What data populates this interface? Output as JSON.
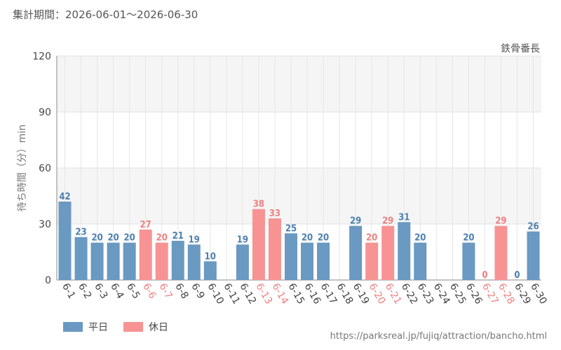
{
  "header": {
    "period": "集計期間：2026-06-01～2026-06-30"
  },
  "footer": {
    "source_url": "https://parksreal.jp/fujiq/attraction/bancho.html"
  },
  "colors": {
    "weekday": "#6a99c2",
    "holiday": "#f79393",
    "weekday_text": "#4d7fae",
    "holiday_text": "#f08080"
  },
  "chart_data": {
    "type": "bar",
    "title": "鉄骨番長",
    "ylabel": "待ち時間（分）min",
    "xlabel": "",
    "ylim": [
      0,
      120
    ],
    "yticks": [
      0,
      30,
      60,
      90,
      120
    ],
    "grid": true,
    "legend_position": "bottom-left",
    "legend": [
      {
        "key": "weekday",
        "label": "平日"
      },
      {
        "key": "holiday",
        "label": "休日"
      }
    ],
    "categories": [
      "6-1",
      "6-2",
      "6-3",
      "6-4",
      "6-5",
      "6-6",
      "6-7",
      "6-8",
      "6-9",
      "6-10",
      "6-11",
      "6-12",
      "6-13",
      "6-14",
      "6-15",
      "6-16",
      "6-17",
      "6-18",
      "6-19",
      "6-20",
      "6-21",
      "6-22",
      "6-23",
      "6-24",
      "6-25",
      "6-26",
      "6-27",
      "6-28",
      "6-29",
      "6-30"
    ],
    "values": [
      42,
      23,
      20,
      20,
      20,
      27,
      20,
      21,
      19,
      10,
      null,
      19,
      38,
      33,
      25,
      20,
      20,
      null,
      29,
      20,
      29,
      31,
      20,
      null,
      null,
      20,
      0,
      29,
      0,
      26
    ],
    "holiday": [
      false,
      false,
      false,
      false,
      false,
      true,
      true,
      false,
      false,
      false,
      false,
      false,
      true,
      true,
      false,
      false,
      false,
      false,
      false,
      true,
      true,
      false,
      false,
      false,
      false,
      false,
      true,
      true,
      false,
      false
    ]
  }
}
